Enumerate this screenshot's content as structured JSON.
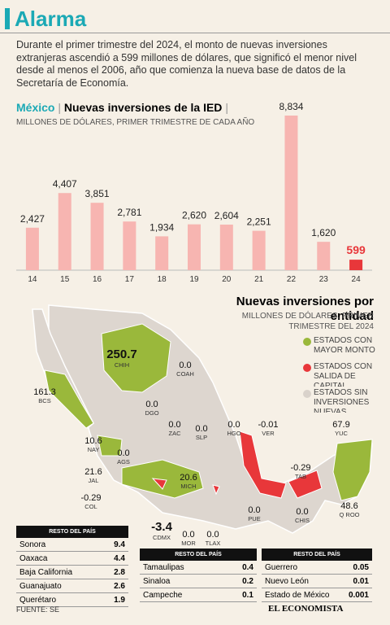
{
  "header": {
    "title": "Alarma",
    "intro": "Durante el primer trimestre del 2024, el monto de nuevas inversiones extranjeras ascendió a 599 millones de dólares, que significó el menor nivel desde al menos el 2006, año que comienza la nueva base de datos de la Secretaría de Economía."
  },
  "chart_data": {
    "type": "bar",
    "title_lead": "México",
    "title": "Nuevas inversiones de la IED",
    "subtitle": "MILLONES DE DÓLARES, PRIMER TRIMESTRE DE CADA AÑO",
    "categories": [
      "14",
      "15",
      "16",
      "17",
      "18",
      "19",
      "20",
      "21",
      "22",
      "23",
      "24"
    ],
    "values": [
      2427,
      4407,
      3851,
      2781,
      1934,
      2620,
      2604,
      2251,
      8834,
      1620,
      599
    ],
    "value_labels": [
      "2,427",
      "4,407",
      "3,851",
      "2,781",
      "1,934",
      "2,620",
      "2,604",
      "2,251",
      "8,834",
      "1,620",
      "599"
    ],
    "colors": [
      "#f7b5b1",
      "#f7b5b1",
      "#f7b5b1",
      "#f7b5b1",
      "#f7b5b1",
      "#f7b5b1",
      "#f7b5b1",
      "#f7b5b1",
      "#f7b5b1",
      "#f7b5b1",
      "#e8373a"
    ]
  },
  "map": {
    "title": "Nuevas inversiones por entidad",
    "subtitle": "MILLONES DE DÓLARES, PRIMER TRIMESTRE DEL 2024",
    "legend": [
      {
        "label": "ESTADOS CON MAYOR MONTO",
        "color": "#9ab83b"
      },
      {
        "label": "ESTADOS CON SALIDA DE CAPITAL",
        "color": "#e8373a"
      },
      {
        "label": "ESTADOS SIN INVERSIONES NUEVAS",
        "color": "#d9d2cb"
      }
    ],
    "states": [
      {
        "value": "250.7",
        "code": "CHIH"
      },
      {
        "value": "0.0",
        "code": "COAH"
      },
      {
        "value": "161.3",
        "code": "BCS"
      },
      {
        "value": "0.0",
        "code": "DGO"
      },
      {
        "value": "0.0",
        "code": "ZAC"
      },
      {
        "value": "0.0",
        "code": "SLP"
      },
      {
        "value": "0.0",
        "code": "HGO"
      },
      {
        "value": "-0.01",
        "code": "VER"
      },
      {
        "value": "67.9",
        "code": "YUC"
      },
      {
        "value": "10.6",
        "code": "NAY"
      },
      {
        "value": "0.0",
        "code": "AGS"
      },
      {
        "value": "-0.29",
        "code": "TAB"
      },
      {
        "value": "21.6",
        "code": "JAL"
      },
      {
        "value": "20.6",
        "code": "MICH"
      },
      {
        "value": "-0.29",
        "code": "COL"
      },
      {
        "value": "48.6",
        "code": "Q ROO"
      },
      {
        "value": "0.0",
        "code": "CHIS"
      },
      {
        "value": "0.0",
        "code": "PUE"
      },
      {
        "value": "-3.4",
        "code": "CDMX"
      },
      {
        "value": "0.0",
        "code": "MOR"
      },
      {
        "value": "0.0",
        "code": "TLAX"
      }
    ]
  },
  "tables": [
    {
      "header": "RESTO DEL PAÍS",
      "rows": [
        [
          "Sonora",
          "9.4"
        ],
        [
          "Oaxaca",
          "4.4"
        ],
        [
          "Baja California",
          "2.8"
        ],
        [
          "Guanajuato",
          "2.6"
        ],
        [
          "Querétaro",
          "1.9"
        ]
      ]
    },
    {
      "header": "RESTO DEL PAÍS",
      "rows": [
        [
          "Tamaulipas",
          "0.4"
        ],
        [
          "Sinaloa",
          "0.2"
        ],
        [
          "Campeche",
          "0.1"
        ]
      ]
    },
    {
      "header": "RESTO DEL PAÍS",
      "rows": [
        [
          "Guerrero",
          "0.05"
        ],
        [
          "Nuevo León",
          "0.01"
        ],
        [
          "Estado de México",
          "0.001"
        ]
      ]
    }
  ],
  "footer": {
    "source": "FUENTE: SE",
    "logo": "EL ECONOMISTA"
  }
}
